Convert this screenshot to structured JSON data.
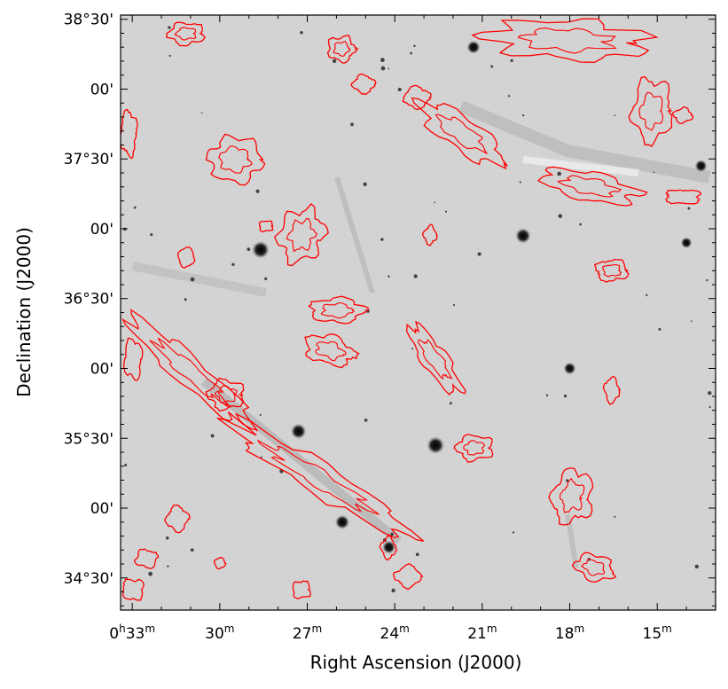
{
  "chart_data": {
    "type": "sky-map",
    "description_kind": "grayscale image with red contour overlay",
    "xlabel": "Right Ascension (J2000)",
    "ylabel": "Declination (J2000)",
    "x_axis": {
      "unit": "RA minutes (0h)",
      "range_min": [
        33.4,
        13.0
      ],
      "ticks": [
        {
          "value": 33,
          "label_main": "0",
          "label_h": "h",
          "label_num": "33",
          "label_m": "m"
        },
        {
          "value": 30,
          "label_num": "30",
          "label_m": "m"
        },
        {
          "value": 27,
          "label_num": "27",
          "label_m": "m"
        },
        {
          "value": 24,
          "label_num": "24",
          "label_m": "m"
        },
        {
          "value": 21,
          "label_num": "21",
          "label_m": "m"
        },
        {
          "value": 18,
          "label_num": "18",
          "label_m": "m"
        },
        {
          "value": 15,
          "label_num": "15",
          "label_m": "m"
        }
      ]
    },
    "y_axis": {
      "unit": "Dec degrees",
      "range_deg": [
        34.27,
        38.53
      ],
      "ticks": [
        {
          "value": 38.5,
          "label": "38°30'"
        },
        {
          "value": 38.0,
          "label": "00'"
        },
        {
          "value": 37.5,
          "label": "37°30'"
        },
        {
          "value": 37.0,
          "label": "00'"
        },
        {
          "value": 36.5,
          "label": "36°30'"
        },
        {
          "value": 36.0,
          "label": "00'"
        },
        {
          "value": 35.5,
          "label": "35°30'"
        },
        {
          "value": 35.0,
          "label": "00'"
        },
        {
          "value": 34.5,
          "label": "34°30'"
        }
      ]
    },
    "colors": {
      "contour": "#ff0000",
      "background_gray": "#c9c9c9",
      "frame": "#000000"
    },
    "contours": [
      {
        "ra": 30.0,
        "dec": 36.05,
        "length_deg": 0.15,
        "angle": 0
      },
      {
        "ra": 28.2,
        "dec": 37.4,
        "length_deg": 0.2,
        "angle": 0
      }
    ],
    "stars": [
      {
        "ra": 28.6,
        "dec": 36.85,
        "size": 1.0
      },
      {
        "ra": 22.6,
        "dec": 35.45,
        "size": 1.0
      },
      {
        "ra": 19.6,
        "dec": 36.95,
        "size": 0.8
      },
      {
        "ra": 27.3,
        "dec": 35.55,
        "size": 0.8
      },
      {
        "ra": 25.8,
        "dec": 34.9,
        "size": 0.7
      },
      {
        "ra": 24.2,
        "dec": 34.72,
        "size": 0.6
      },
      {
        "ra": 18.0,
        "dec": 36.0,
        "size": 0.5
      },
      {
        "ra": 21.3,
        "dec": 38.3,
        "size": 0.6
      },
      {
        "ra": 13.5,
        "dec": 37.45,
        "size": 0.5
      },
      {
        "ra": 14.0,
        "dec": 36.9,
        "size": 0.4
      }
    ]
  }
}
